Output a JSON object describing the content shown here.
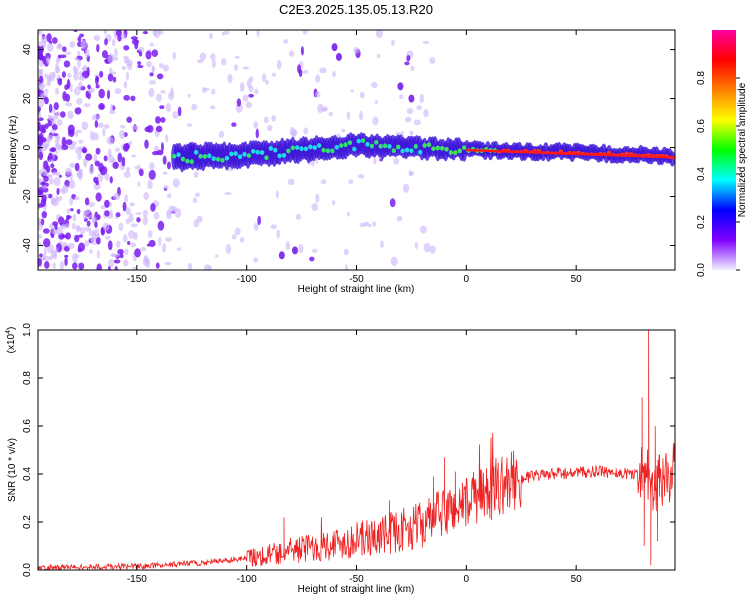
{
  "title": "C2E3.2025.135.05.13.R20",
  "chart_data": [
    {
      "type": "heatmap",
      "xlabel": "Height of straight line (km)",
      "ylabel": "Frequency (Hz)",
      "xlim": [
        -195,
        95
      ],
      "ylim": [
        -50,
        48
      ],
      "x_ticks": [
        -150,
        -100,
        -50,
        0,
        50
      ],
      "y_ticks": [
        -40,
        -20,
        0,
        20,
        40
      ],
      "colorbar": {
        "label": "Normalized spectral amplitude",
        "range": [
          0.0,
          1.0
        ],
        "ticks": [
          0.0,
          0.2,
          0.4,
          0.6,
          0.8
        ],
        "tick_labels": [
          "0.0",
          "0.2",
          "0.4",
          "0.6",
          "0.8"
        ],
        "colors": [
          "#f0f0ff",
          "#8000ff",
          "#0000ff",
          "#00ffff",
          "#00ff00",
          "#ffff00",
          "#ff8000",
          "#ff0000",
          "#ff00a0"
        ]
      },
      "band": {
        "center_frequency_hz": [
          {
            "x": -133,
            "y": -4
          },
          {
            "x": -100,
            "y": -3
          },
          {
            "x": -50,
            "y": 1
          },
          {
            "x": 0,
            "y": -1
          },
          {
            "x": 50,
            "y": -2
          },
          {
            "x": 80,
            "y": -3
          },
          {
            "x": 95,
            "y": -4
          }
        ],
        "noisy_region_x": [
          -195,
          -60
        ],
        "strong_region_x": [
          0,
          95
        ]
      }
    },
    {
      "type": "line",
      "xlabel": "Height of straight line (km)",
      "ylabel": "SNR (10 * v/v)",
      "y_multiplier": "(x10",
      "y_multiplier_exp": "4",
      "y_multiplier_close": ")",
      "xlim": [
        -195,
        95
      ],
      "ylim": [
        0,
        1.0
      ],
      "x_ticks": [
        -150,
        -100,
        -50,
        0,
        50
      ],
      "y_ticks": [
        0.0,
        0.2,
        0.4,
        0.6,
        0.8,
        1.0
      ],
      "y_tick_labels": [
        "0.0",
        "0.2",
        "0.4",
        "0.6",
        "0.8",
        "1.0"
      ],
      "color": "#ee2222",
      "trend": [
        {
          "x": -195,
          "y": 0.01
        },
        {
          "x": -150,
          "y": 0.015
        },
        {
          "x": -120,
          "y": 0.03
        },
        {
          "x": -100,
          "y": 0.05
        },
        {
          "x": -80,
          "y": 0.08
        },
        {
          "x": -60,
          "y": 0.11
        },
        {
          "x": -40,
          "y": 0.14
        },
        {
          "x": -20,
          "y": 0.19
        },
        {
          "x": -10,
          "y": 0.24
        },
        {
          "x": 0,
          "y": 0.28
        },
        {
          "x": 10,
          "y": 0.32
        },
        {
          "x": 20,
          "y": 0.37
        },
        {
          "x": 30,
          "y": 0.39
        },
        {
          "x": 40,
          "y": 0.4
        },
        {
          "x": 60,
          "y": 0.41
        },
        {
          "x": 78,
          "y": 0.4
        },
        {
          "x": 82,
          "y": 0.42
        },
        {
          "x": 86,
          "y": 0.35
        },
        {
          "x": 90,
          "y": 0.38
        },
        {
          "x": 95,
          "y": 0.42
        }
      ],
      "peaks": [
        {
          "x": 83,
          "y": 1.0
        },
        {
          "x": 80,
          "y": 0.72
        },
        {
          "x": 86,
          "y": 0.6
        },
        {
          "x": 88,
          "y": 0.48
        },
        {
          "x": -10,
          "y": 0.47
        },
        {
          "x": -5,
          "y": 0.41
        },
        {
          "x": -15,
          "y": 0.39
        },
        {
          "x": -35,
          "y": 0.29
        },
        {
          "x": -83,
          "y": 0.22
        }
      ],
      "dips": [
        {
          "x": 84,
          "y": 0.02
        },
        {
          "x": 81,
          "y": 0.1
        },
        {
          "x": 87,
          "y": 0.12
        }
      ]
    }
  ]
}
